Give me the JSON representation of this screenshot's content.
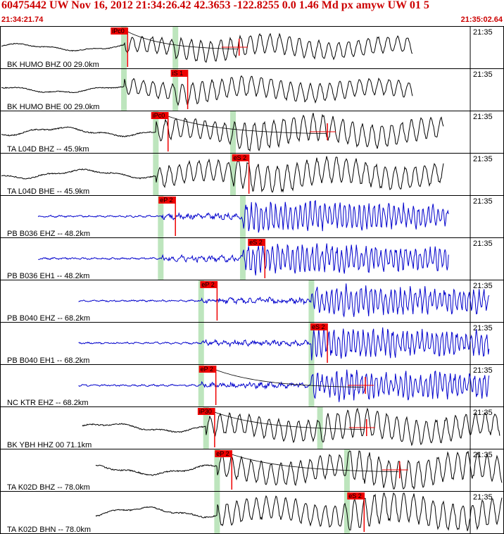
{
  "header": {
    "title": "60475442 UW Nov 16, 2012 21:34:26.42   42.3653 -122.8255  0.0 1.46 Md px amyw UW 01   5",
    "start_time": "21:34:21.74",
    "end_time": "21:35:02.64"
  },
  "colors": {
    "header_red": "#cc0000",
    "pick_red": "#ee0000",
    "marker_green": "#bde5bd",
    "trace_black": "#000000",
    "trace_blue": "#0000cc"
  },
  "chart_data": {
    "type": "line",
    "title": "",
    "xlabel": "",
    "ylabel": "",
    "x_range_sec": [
      0,
      40.9
    ],
    "time_tick_label": "21:35",
    "time_tick_sec": 38.26,
    "traces": [
      {
        "label": "BK HUMO BHZ 00 29.0km",
        "color": "black",
        "style": "bb",
        "start": 0.0,
        "end": 33.6,
        "amp": 14,
        "p_sec": 10.0,
        "s_sec": 14.2,
        "pick": {
          "label": "iPc0",
          "sec": 10.3
        },
        "coda_end": 19.4
      },
      {
        "label": "BK HUMO BHE 00 29.0km",
        "color": "black",
        "style": "bb",
        "start": 0.0,
        "end": 33.6,
        "amp": 14,
        "p_sec": 10.0,
        "s_sec": 14.2,
        "pick": {
          "label": "iS 1",
          "sec": 15.2
        }
      },
      {
        "label": "TA L04D BHZ -- 45.9km",
        "color": "black",
        "style": "bb",
        "start": 0.0,
        "end": 36.1,
        "amp": 18,
        "p_sec": 12.6,
        "s_sec": 18.9,
        "pick": {
          "label": "iPc0",
          "sec": 13.6
        },
        "coda_end": 26.6
      },
      {
        "label": "TA L04D BHE -- 45.9km",
        "color": "black",
        "style": "bb",
        "start": 0.0,
        "end": 36.1,
        "amp": 18,
        "p_sec": 12.6,
        "s_sec": 18.9,
        "pick": {
          "label": "eS 2",
          "sec": 20.2
        }
      },
      {
        "label": "PB B036 EHZ -- 48.2km",
        "color": "blue",
        "style": "hf",
        "start": 3.0,
        "end": 36.5,
        "amp": 14,
        "p_sec": 13.0,
        "s_sec": 19.7,
        "pick": {
          "label": "eP 2",
          "sec": 14.2
        }
      },
      {
        "label": "PB B036 EH1 -- 48.2km",
        "color": "blue",
        "style": "hf",
        "start": 3.0,
        "end": 36.5,
        "amp": 14,
        "p_sec": 13.0,
        "s_sec": 19.7,
        "pick": {
          "label": "eS 2",
          "sec": 21.5
        }
      },
      {
        "label": "PB B040 EHZ -- 68.2km",
        "color": "blue",
        "style": "hf",
        "start": 6.3,
        "end": 39.8,
        "amp": 14,
        "p_sec": 16.3,
        "s_sec": 25.3,
        "pick": {
          "label": "eP 2",
          "sec": 17.6
        }
      },
      {
        "label": "PB B040 EH1 -- 68.2km",
        "color": "blue",
        "style": "hf",
        "start": 6.3,
        "end": 39.8,
        "amp": 14,
        "p_sec": 16.3,
        "s_sec": 25.3,
        "pick": {
          "label": "eS 2",
          "sec": 26.6
        }
      },
      {
        "label": "NC KTR EHZ -- 68.2km",
        "color": "blue",
        "style": "hf",
        "start": 6.3,
        "end": 39.8,
        "amp": 14,
        "p_sec": 16.3,
        "s_sec": 25.3,
        "pick": {
          "label": "eP 2",
          "sec": 17.5
        },
        "coda_end": 29.7
      },
      {
        "label": "BK YBH HHZ 00 71.1km",
        "color": "black",
        "style": "bb",
        "start": 6.6,
        "end": 40.7,
        "amp": 18,
        "p_sec": 16.7,
        "s_sec": 26.0,
        "pick": {
          "label": "iP30",
          "sec": 17.4
        },
        "coda_end": 29.8
      },
      {
        "label": "TA K02D BHZ -- 78.0km",
        "color": "black",
        "style": "bb",
        "start": 7.7,
        "end": 40.9,
        "amp": 20,
        "p_sec": 17.6,
        "s_sec": 28.2,
        "pick": {
          "label": "eP 2",
          "sec": 18.8
        },
        "coda_end": 32.5
      },
      {
        "label": "TA K02D BHN -- 78.0km",
        "color": "black",
        "style": "bb",
        "start": 7.7,
        "end": 40.9,
        "amp": 20,
        "p_sec": 17.6,
        "s_sec": 28.2,
        "pick": {
          "label": "eS 2",
          "sec": 29.6
        }
      }
    ]
  }
}
